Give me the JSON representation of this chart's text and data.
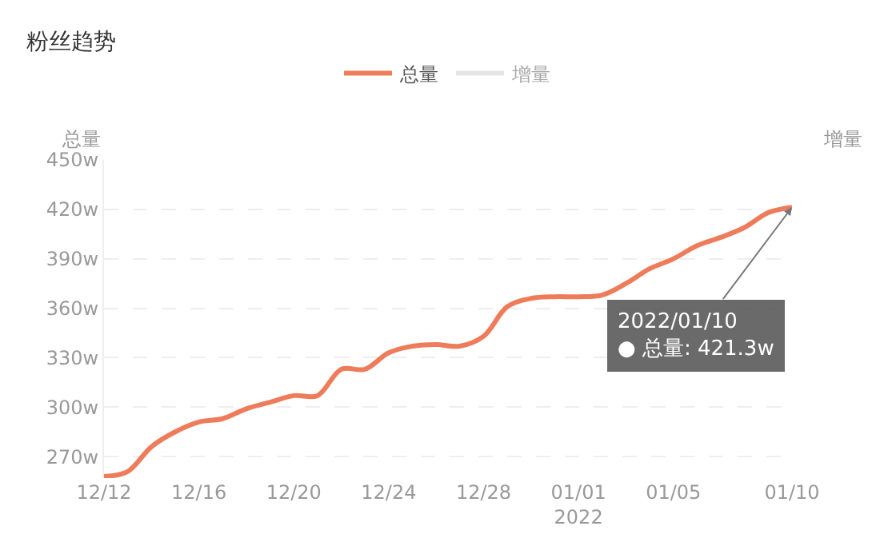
{
  "chart_data": {
    "type": "line",
    "title": "粉丝趋势",
    "ylabel": "总量",
    "y2label": "增量",
    "x": [
      "2021-12-12",
      "2021-12-13",
      "2021-12-14",
      "2021-12-15",
      "2021-12-16",
      "2021-12-17",
      "2021-12-18",
      "2021-12-19",
      "2021-12-20",
      "2021-12-21",
      "2021-12-22",
      "2021-12-23",
      "2021-12-24",
      "2021-12-25",
      "2021-12-26",
      "2021-12-27",
      "2021-12-28",
      "2021-12-29",
      "2021-12-30",
      "2021-12-31",
      "2022-01-01",
      "2022-01-02",
      "2022-01-03",
      "2022-01-04",
      "2022-01-05",
      "2022-01-06",
      "2022-01-07",
      "2022-01-08",
      "2022-01-09",
      "2022-01-10"
    ],
    "series": [
      {
        "name": "总量",
        "color": "#ee7c5a",
        "values": [
          258,
          261,
          276,
          285,
          291,
          293,
          299,
          303,
          307,
          307,
          323,
          323,
          333,
          337,
          338,
          337,
          343,
          361,
          366,
          367,
          367,
          368,
          375,
          384,
          390,
          398,
          403,
          409,
          418,
          421.3
        ]
      },
      {
        "name": "增量",
        "color": "#cccccc",
        "values": [
          null,
          null,
          null,
          null,
          null,
          null,
          null,
          null,
          null,
          null,
          null,
          null,
          null,
          null,
          null,
          null,
          null,
          null,
          null,
          null,
          null,
          null,
          null,
          null,
          null,
          null,
          null,
          null,
          null,
          null
        ]
      }
    ],
    "xlim": [
      "2021-12-12",
      "2022-01-10"
    ],
    "xticks": [
      {
        "value": "2021-12-12",
        "label": "12/12"
      },
      {
        "value": "2021-12-16",
        "label": "12/16"
      },
      {
        "value": "2021-12-20",
        "label": "12/20"
      },
      {
        "value": "2021-12-24",
        "label": "12/24"
      },
      {
        "value": "2021-12-28",
        "label": "12/28"
      },
      {
        "value": "2022-01-01",
        "label": "01/01\n2022"
      },
      {
        "value": "2022-01-05",
        "label": "01/05"
      },
      {
        "value": "2022-01-10",
        "label": "01/10"
      }
    ],
    "ylim": [
      257,
      450
    ],
    "yticks": [
      {
        "value": 270,
        "label": "270w"
      },
      {
        "value": 300,
        "label": "300w"
      },
      {
        "value": 330,
        "label": "330w"
      },
      {
        "value": 360,
        "label": "360w"
      },
      {
        "value": 390,
        "label": "390w"
      },
      {
        "value": 420,
        "label": "420w"
      },
      {
        "value": 450,
        "label": "450w"
      }
    ],
    "grid": "y",
    "legend": "top",
    "marker": "none",
    "line_style": "solid",
    "annotations": [
      {
        "text": "2022/01/10\n● 总量: 421.3w",
        "x": "2022-01-10",
        "y": 421.3
      }
    ]
  }
}
